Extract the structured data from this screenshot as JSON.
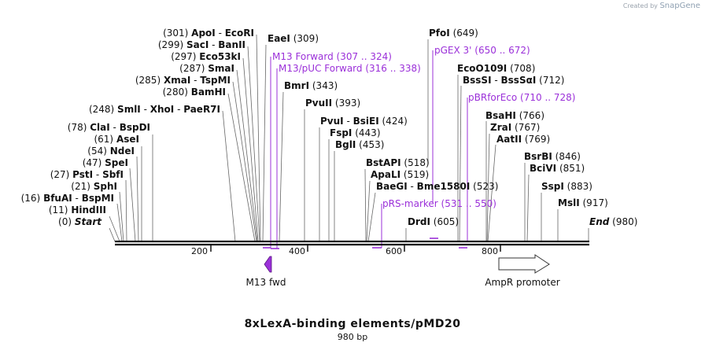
{
  "credit": {
    "prefix": "Created by",
    "brand": "SnapGene"
  },
  "title": "8xLexA-binding elements/pMD20",
  "length_label": "980 bp",
  "scale_ticks": [
    "200",
    "400",
    "600",
    "800"
  ],
  "start_label": {
    "pos": "(0)",
    "name": "Start"
  },
  "end_label": {
    "name": "End",
    "pos": "(980)"
  },
  "sites": [
    {
      "pos": "(301)",
      "name": "ApoI",
      "alt": "EcoRI"
    },
    {
      "pos": "(299)",
      "name": "SacI",
      "alt": "BanII"
    },
    {
      "pos": "(297)",
      "name": "Eco53kI"
    },
    {
      "pos": "(287)",
      "name": "SmaI"
    },
    {
      "pos": "(285)",
      "name": "XmaI",
      "alt": "TspMI"
    },
    {
      "pos": "(280)",
      "name": "BamHI"
    },
    {
      "pos": "(248)",
      "name": "SmlI",
      "alt": "XhoI",
      "alt2": "PaeR7I"
    },
    {
      "pos": "(78)",
      "name": "ClaI",
      "alt": "BspDI"
    },
    {
      "pos": "(61)",
      "name": "AseI"
    },
    {
      "pos": "(54)",
      "name": "NdeI"
    },
    {
      "pos": "(47)",
      "name": "SpeI"
    },
    {
      "pos": "(27)",
      "name": "PstI",
      "alt": "SbfI"
    },
    {
      "pos": "(21)",
      "name": "SphI"
    },
    {
      "pos": "(16)",
      "name": "BfuAI",
      "alt": "BspMI"
    },
    {
      "pos": "(11)",
      "name": "HindIII"
    },
    {
      "name": "EaeI",
      "pos": "(309)"
    },
    {
      "name": "BmrI",
      "pos": "(343)"
    },
    {
      "name": "PvuII",
      "pos": "(393)"
    },
    {
      "name": "PvuI",
      "alt": "BsiEI",
      "pos": "(424)"
    },
    {
      "name": "FspI",
      "pos": "(443)"
    },
    {
      "name": "BglI",
      "pos": "(453)"
    },
    {
      "name": "BstAPI",
      "pos": "(518)"
    },
    {
      "name": "ApaLI",
      "pos": "(519)"
    },
    {
      "name": "BaeGI",
      "alt": "Bme1580I",
      "pos": "(523)"
    },
    {
      "name": "DrdI",
      "pos": "(605)"
    },
    {
      "name": "PfoI",
      "pos": "(649)"
    },
    {
      "name": "EcoO109I",
      "pos": "(708)"
    },
    {
      "name": "BssSI",
      "alt": "BssSαI",
      "pos": "(712)"
    },
    {
      "name": "BsaHI",
      "pos": "(766)"
    },
    {
      "name": "ZraI",
      "pos": "(767)"
    },
    {
      "name": "AatII",
      "pos": "(769)"
    },
    {
      "name": "BsrBI",
      "pos": "(846)"
    },
    {
      "name": "BciVI",
      "pos": "(851)"
    },
    {
      "name": "SspI",
      "pos": "(883)"
    },
    {
      "name": "MslI",
      "pos": "(917)"
    }
  ],
  "primers": [
    {
      "name": "M13 Forward",
      "range": "(307 .. 324)"
    },
    {
      "name": "M13/pUC Forward",
      "range": "(316 .. 338)"
    },
    {
      "name": "pGEX 3'",
      "range": "(650 .. 672)"
    },
    {
      "name": "pBRforEco",
      "range": "(710 .. 728)"
    },
    {
      "name": "pRS-marker",
      "range": "(531 .. 550)"
    }
  ],
  "features": [
    {
      "name": "M13 fwd",
      "color": "#9b30d9"
    },
    {
      "name": "AmpR promoter",
      "color": "#ffffff"
    }
  ]
}
